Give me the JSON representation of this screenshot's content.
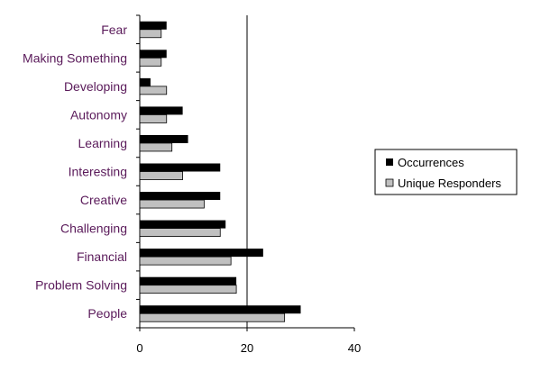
{
  "chart_data": {
    "type": "bar",
    "orientation": "horizontal",
    "categories": [
      "Fear",
      "Making Something",
      "Developing",
      "Autonomy",
      "Learning",
      "Interesting",
      "Creative",
      "Challenging",
      "Financial",
      "Problem Solving",
      "People"
    ],
    "series": [
      {
        "name": "Occurrences",
        "values": [
          5,
          5,
          2,
          8,
          9,
          15,
          15,
          16,
          23,
          18,
          30
        ],
        "color": "#000000"
      },
      {
        "name": "Unique Responders",
        "values": [
          4,
          4,
          5,
          5,
          6,
          8,
          12,
          15,
          17,
          18,
          27
        ],
        "color": "#c0c0c0"
      }
    ],
    "xlim": [
      0,
      40
    ],
    "xticks": [
      0,
      20,
      40
    ],
    "gridlines_x": [
      20
    ],
    "legend_position": "right",
    "colors": {
      "category_text": "#5a1a5a",
      "axis": "#000000"
    }
  }
}
